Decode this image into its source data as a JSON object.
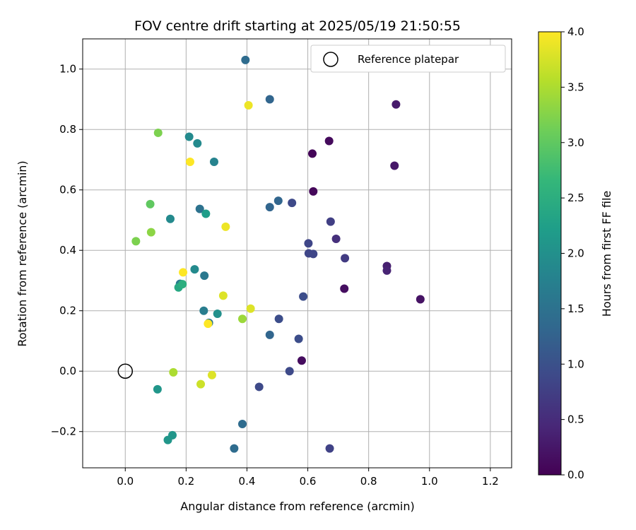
{
  "chart_data": {
    "type": "scatter",
    "title": "FOV centre drift starting at 2025/05/19 21:50:55",
    "xlabel": "Angular distance from reference (arcmin)",
    "ylabel": "Rotation from reference (arcmin)",
    "xlim": [
      -0.14,
      1.27
    ],
    "ylim": [
      -0.32,
      1.1
    ],
    "xticks": [
      0.0,
      0.2,
      0.4,
      0.6,
      0.8,
      1.0,
      1.2
    ],
    "xtick_labels": [
      "0.0",
      "0.2",
      "0.4",
      "0.6",
      "0.8",
      "1.0",
      "1.2"
    ],
    "yticks": [
      -0.2,
      0.0,
      0.2,
      0.4,
      0.6,
      0.8,
      1.0
    ],
    "ytick_labels": [
      "−0.2",
      "0.0",
      "0.2",
      "0.4",
      "0.6",
      "0.8",
      "1.0"
    ],
    "grid": true,
    "legend": {
      "label": "Reference platepar",
      "placement": "top-right"
    },
    "reference_point": {
      "x": 0.0,
      "y": 0.0
    },
    "colorbar": {
      "label": "Hours from first FF file",
      "colormap": "viridis",
      "range": [
        0.0,
        4.0
      ],
      "ticks": [
        0.0,
        0.5,
        1.0,
        1.5,
        2.0,
        2.5,
        3.0,
        3.5,
        4.0
      ],
      "tick_labels": [
        "0.0",
        "0.5",
        "1.0",
        "1.5",
        "2.0",
        "2.5",
        "3.0",
        "3.5",
        "4.0"
      ]
    },
    "colors": {
      "viridis_stops": [
        "#440154",
        "#482878",
        "#3e4989",
        "#31688e",
        "#26828e",
        "#1f9e89",
        "#35b779",
        "#6ece58",
        "#b5de2b",
        "#fde725"
      ],
      "grid": "#b0b0b0"
    },
    "series": [
      {
        "name": "FOV centre",
        "points": [
          {
            "x": 0.615,
            "y": 0.72,
            "hours": 0.05
          },
          {
            "x": 0.67,
            "y": 0.762,
            "hours": 0.1
          },
          {
            "x": 0.618,
            "y": 0.595,
            "hours": 0.08
          },
          {
            "x": 0.58,
            "y": 0.035,
            "hours": 0.12
          },
          {
            "x": 0.72,
            "y": 0.273,
            "hours": 0.15
          },
          {
            "x": 0.97,
            "y": 0.238,
            "hours": 0.2
          },
          {
            "x": 0.885,
            "y": 0.68,
            "hours": 0.25
          },
          {
            "x": 0.89,
            "y": 0.883,
            "hours": 0.3
          },
          {
            "x": 0.86,
            "y": 0.348,
            "hours": 0.35
          },
          {
            "x": 0.86,
            "y": 0.333,
            "hours": 0.4
          },
          {
            "x": 0.693,
            "y": 0.438,
            "hours": 0.55
          },
          {
            "x": 0.722,
            "y": 0.374,
            "hours": 0.7
          },
          {
            "x": 0.675,
            "y": 0.495,
            "hours": 0.75
          },
          {
            "x": 0.602,
            "y": 0.423,
            "hours": 0.85
          },
          {
            "x": 0.603,
            "y": 0.39,
            "hours": 0.85
          },
          {
            "x": 0.618,
            "y": 0.388,
            "hours": 0.85
          },
          {
            "x": 0.672,
            "y": -0.256,
            "hours": 0.8
          },
          {
            "x": 0.548,
            "y": 0.557,
            "hours": 0.9
          },
          {
            "x": 0.585,
            "y": 0.247,
            "hours": 0.95
          },
          {
            "x": 0.57,
            "y": 0.107,
            "hours": 0.95
          },
          {
            "x": 0.54,
            "y": 0.0,
            "hours": 0.9
          },
          {
            "x": 0.44,
            "y": -0.052,
            "hours": 0.9
          },
          {
            "x": 0.505,
            "y": 0.173,
            "hours": 0.95
          },
          {
            "x": 0.475,
            "y": 0.9,
            "hours": 1.3
          },
          {
            "x": 0.503,
            "y": 0.564,
            "hours": 1.3
          },
          {
            "x": 0.475,
            "y": 0.543,
            "hours": 1.3
          },
          {
            "x": 0.475,
            "y": 0.12,
            "hours": 1.3
          },
          {
            "x": 0.395,
            "y": 1.03,
            "hours": 1.4
          },
          {
            "x": 0.385,
            "y": -0.175,
            "hours": 1.4
          },
          {
            "x": 0.358,
            "y": -0.256,
            "hours": 1.4
          },
          {
            "x": 0.245,
            "y": 0.537,
            "hours": 1.5
          },
          {
            "x": 0.26,
            "y": 0.316,
            "hours": 1.6
          },
          {
            "x": 0.275,
            "y": 0.16,
            "hours": 1.6
          },
          {
            "x": 0.258,
            "y": 0.2,
            "hours": 1.7
          },
          {
            "x": 0.18,
            "y": 0.289,
            "hours": 1.65
          },
          {
            "x": 0.292,
            "y": 0.693,
            "hours": 1.8
          },
          {
            "x": 0.21,
            "y": 0.776,
            "hours": 1.9
          },
          {
            "x": 0.237,
            "y": 0.754,
            "hours": 1.9
          },
          {
            "x": 0.148,
            "y": 0.504,
            "hours": 1.9
          },
          {
            "x": 0.228,
            "y": 0.337,
            "hours": 1.9
          },
          {
            "x": 0.303,
            "y": 0.19,
            "hours": 2.0
          },
          {
            "x": 0.265,
            "y": 0.521,
            "hours": 2.2
          },
          {
            "x": 0.106,
            "y": -0.06,
            "hours": 2.1
          },
          {
            "x": 0.155,
            "y": -0.212,
            "hours": 2.1
          },
          {
            "x": 0.14,
            "y": -0.228,
            "hours": 2.1
          },
          {
            "x": 0.175,
            "y": 0.277,
            "hours": 2.4
          },
          {
            "x": 0.188,
            "y": 0.288,
            "hours": 2.5
          },
          {
            "x": 0.082,
            "y": 0.553,
            "hours": 3.0
          },
          {
            "x": 0.035,
            "y": 0.43,
            "hours": 3.2
          },
          {
            "x": 0.085,
            "y": 0.46,
            "hours": 3.3
          },
          {
            "x": 0.108,
            "y": 0.789,
            "hours": 3.2
          },
          {
            "x": 0.385,
            "y": 0.173,
            "hours": 3.4
          },
          {
            "x": 0.158,
            "y": -0.004,
            "hours": 3.5
          },
          {
            "x": 0.248,
            "y": -0.043,
            "hours": 3.7
          },
          {
            "x": 0.285,
            "y": -0.013,
            "hours": 3.8
          },
          {
            "x": 0.322,
            "y": 0.25,
            "hours": 3.8
          },
          {
            "x": 0.412,
            "y": 0.207,
            "hours": 3.8
          },
          {
            "x": 0.33,
            "y": 0.478,
            "hours": 3.9
          },
          {
            "x": 0.405,
            "y": 0.88,
            "hours": 3.9
          },
          {
            "x": 0.213,
            "y": 0.693,
            "hours": 4.0
          },
          {
            "x": 0.19,
            "y": 0.327,
            "hours": 4.0
          },
          {
            "x": 0.272,
            "y": 0.157,
            "hours": 4.0
          }
        ]
      }
    ]
  }
}
